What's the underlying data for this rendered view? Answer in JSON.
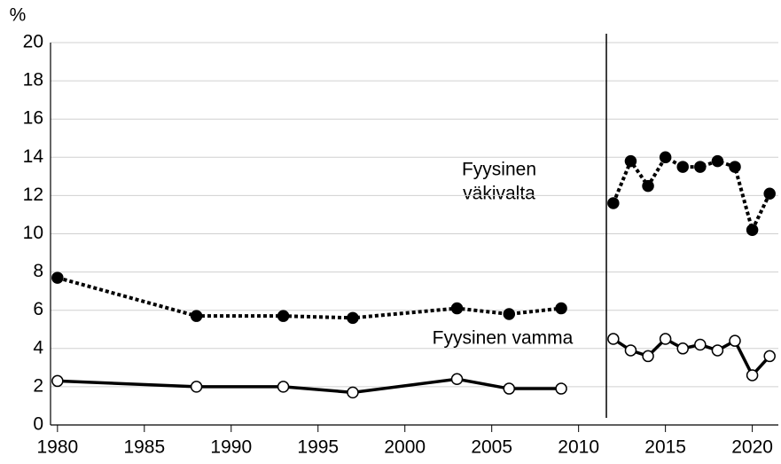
{
  "chart_data": {
    "type": "line",
    "y_axis_label": "%",
    "x": [
      1980,
      1988,
      1993,
      1997,
      2003,
      2006,
      2009,
      2011,
      2012,
      2013,
      2014,
      2015,
      2016,
      2017,
      2018,
      2019,
      2020,
      2021
    ],
    "series": [
      {
        "name": "Fyysinen väkivalta",
        "color": "#000000",
        "dash": "dotted",
        "marker": "filled",
        "values": [
          7.7,
          5.7,
          5.7,
          5.6,
          6.1,
          5.8,
          6.1,
          null,
          11.6,
          13.8,
          12.5,
          14.0,
          13.5,
          13.5,
          13.8,
          13.5,
          10.2,
          12.1
        ]
      },
      {
        "name": "Fyysinen vamma",
        "color": "#000000",
        "dash": "solid",
        "marker": "open",
        "values": [
          2.3,
          2.0,
          2.0,
          1.7,
          2.4,
          1.9,
          1.9,
          null,
          4.5,
          3.9,
          3.6,
          4.5,
          4.0,
          4.2,
          3.9,
          4.4,
          2.6,
          3.6
        ]
      }
    ],
    "annotations": [
      "Fyysinen",
      "väkivalta",
      "Fyysinen vamma"
    ],
    "divider_x": 2011.6,
    "xlim": [
      1979.6,
      2021.5
    ],
    "xticks": [
      1980,
      1985,
      1990,
      1995,
      2000,
      2005,
      2010,
      2015,
      2020
    ],
    "ylim": [
      0,
      20
    ],
    "yticks": [
      0,
      2,
      4,
      6,
      8,
      10,
      12,
      14,
      16,
      18,
      20
    ],
    "grid": true
  }
}
